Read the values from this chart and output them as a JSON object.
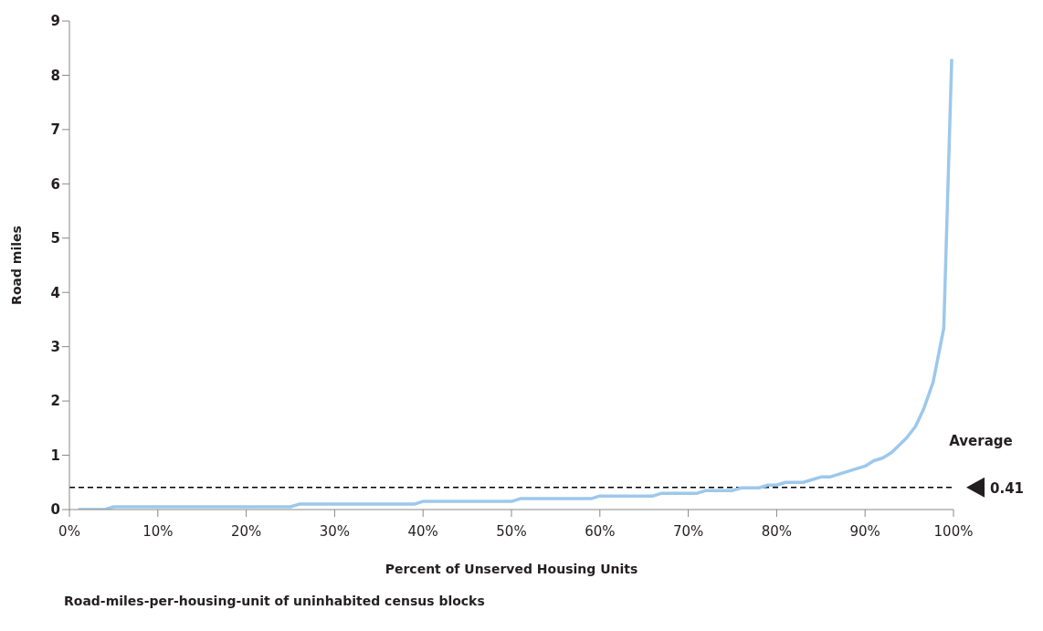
{
  "chart_data": {
    "type": "line",
    "title": "Road-miles-per-housing-unit of uninhabited census blocks",
    "xlabel": "Percent of Unserved Housing Units",
    "ylabel": "Road miles",
    "x": [
      1,
      4,
      5,
      25,
      26,
      39,
      40,
      50,
      51,
      59,
      60,
      66,
      67,
      71,
      72,
      75,
      76,
      78,
      79,
      80,
      81,
      83,
      85,
      86,
      88,
      90,
      91,
      92,
      93,
      94.7,
      95.7,
      96.6,
      97.7,
      98.9,
      99.8
    ],
    "series": [
      {
        "color": "#9dc8eb",
        "values": [
          0,
          0,
          0.05,
          0.05,
          0.1,
          0.1,
          0.15,
          0.15,
          0.2,
          0.2,
          0.25,
          0.25,
          0.3,
          0.3,
          0.35,
          0.35,
          0.4,
          0.4,
          0.45,
          0.45,
          0.5,
          0.5,
          0.6,
          0.6,
          0.7,
          0.8,
          0.9,
          0.95,
          1.05,
          1.32,
          1.53,
          1.84,
          2.35,
          3.34,
          8.3
        ]
      }
    ],
    "xlim": [
      0,
      100
    ],
    "xticks": [
      {
        "value": 0,
        "label": "0%"
      },
      {
        "value": 10,
        "label": "10%"
      },
      {
        "value": 20,
        "label": "20%"
      },
      {
        "value": 30,
        "label": "30%"
      },
      {
        "value": 40,
        "label": "40%"
      },
      {
        "value": 50,
        "label": "50%"
      },
      {
        "value": 60,
        "label": "60%"
      },
      {
        "value": 70,
        "label": "70%"
      },
      {
        "value": 80,
        "label": "80%"
      },
      {
        "value": 90,
        "label": "90%"
      },
      {
        "value": 100,
        "label": "100%"
      }
    ],
    "ylim": [
      0,
      9
    ],
    "yticks": [
      0,
      1,
      2,
      3,
      4,
      5,
      6,
      7,
      8,
      9
    ],
    "ref_lines": [
      {
        "axis": "y",
        "value": 0.41,
        "label": "0.41",
        "color": "#000000",
        "line_style": "dashed"
      }
    ],
    "annotations": [
      "Average"
    ],
    "grid": false,
    "legend": false,
    "marker": "none",
    "line_style": "solid"
  }
}
